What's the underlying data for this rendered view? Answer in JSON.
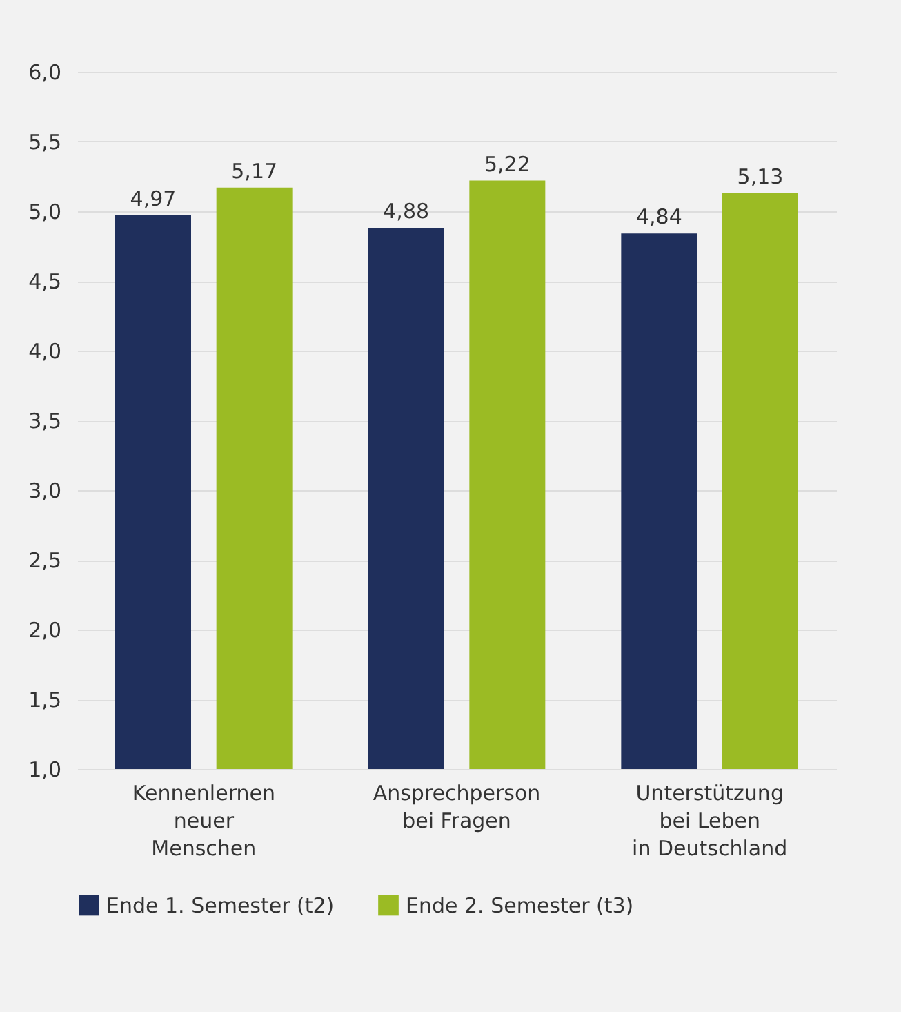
{
  "chart_data": {
    "type": "bar",
    "categories": [
      "Kennenlernen\nneuer\nMenschen",
      "Ansprechperson\nbei Fragen",
      "Unterstützung\nbei Leben\nin Deutschland"
    ],
    "series": [
      {
        "name": "Ende 1. Semester (t2)",
        "color": "#1f2f5c",
        "values": [
          4.97,
          4.88,
          4.84
        ],
        "value_labels": [
          "4,97",
          "4,88",
          "4,84"
        ]
      },
      {
        "name": "Ende 2. Semester (t3)",
        "color": "#9bbb24",
        "values": [
          5.17,
          5.22,
          5.13
        ],
        "value_labels": [
          "5,17",
          "5,22",
          "5,13"
        ]
      }
    ],
    "ylim": [
      1,
      6
    ],
    "yticks": [
      {
        "value": 1,
        "label": "1,0"
      },
      {
        "value": 1.5,
        "label": "1,5"
      },
      {
        "value": 2,
        "label": "2,0"
      },
      {
        "value": 2.5,
        "label": "2,5"
      },
      {
        "value": 3,
        "label": "3,0"
      },
      {
        "value": 3.5,
        "label": "3,5"
      },
      {
        "value": 4,
        "label": "4,0"
      },
      {
        "value": 4.5,
        "label": "4,5"
      },
      {
        "value": 5,
        "label": "5,0"
      },
      {
        "value": 5.5,
        "label": "5,5"
      },
      {
        "value": 6,
        "label": "6,0"
      }
    ],
    "grid": true,
    "legend": "bottom"
  }
}
